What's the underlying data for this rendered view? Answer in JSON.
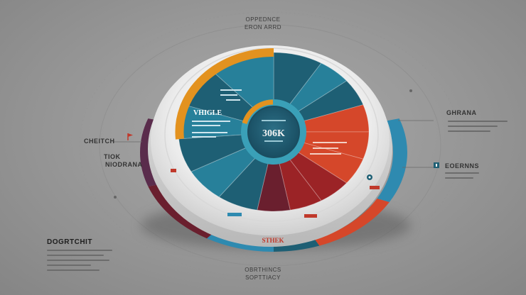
{
  "top_caption": [
    "OPPEDNCE",
    "ERON ARRD"
  ],
  "left_labels": [
    "CHEITCH",
    "TIOK",
    "NIODRANA"
  ],
  "right_labels": [
    "GHRANA",
    "EOERNNS"
  ],
  "inner_label": "VHIGLE",
  "center_value": "306K",
  "ring_label": "STHEK",
  "bottom_left_title": "DOGRTCHIT",
  "bottom_caption": [
    "OBRTHINCS",
    "SOPTTIACY"
  ],
  "icons": [
    "flag-icon",
    "info-square-icon",
    "pin-icon"
  ],
  "colors": {
    "orange": "#e3921f",
    "teal_dark": "#1e5f74",
    "teal": "#27809a",
    "teal_light": "#3aa0b8",
    "red": "#d5472a",
    "red_dark": "#9b2326",
    "maroon": "#6a1f2e",
    "purple": "#5a2c4c",
    "blue": "#2e8ab0"
  }
}
